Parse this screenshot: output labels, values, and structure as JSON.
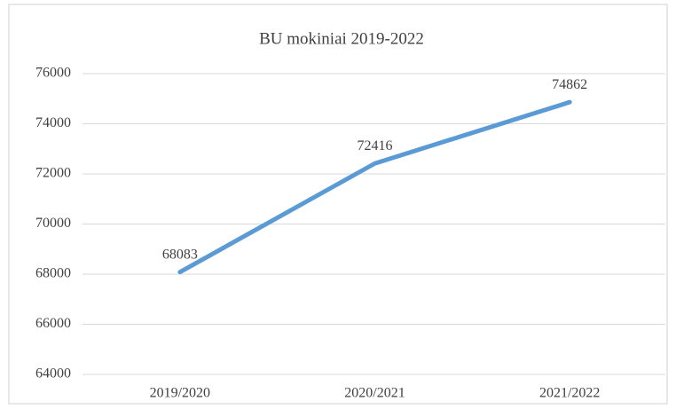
{
  "chart_data": {
    "type": "line",
    "title": "BU mokiniai 2019-2022",
    "categories": [
      "2019/2020",
      "2020/2021",
      "2021/2022"
    ],
    "series": [
      {
        "name": "BU mokiniai",
        "color": "#5b9bd5",
        "values": [
          68083,
          72416,
          74862
        ]
      }
    ],
    "ylim": [
      64000,
      76000
    ],
    "yticks": [
      64000,
      66000,
      68000,
      70000,
      72000,
      74000,
      76000
    ],
    "grid": true
  }
}
